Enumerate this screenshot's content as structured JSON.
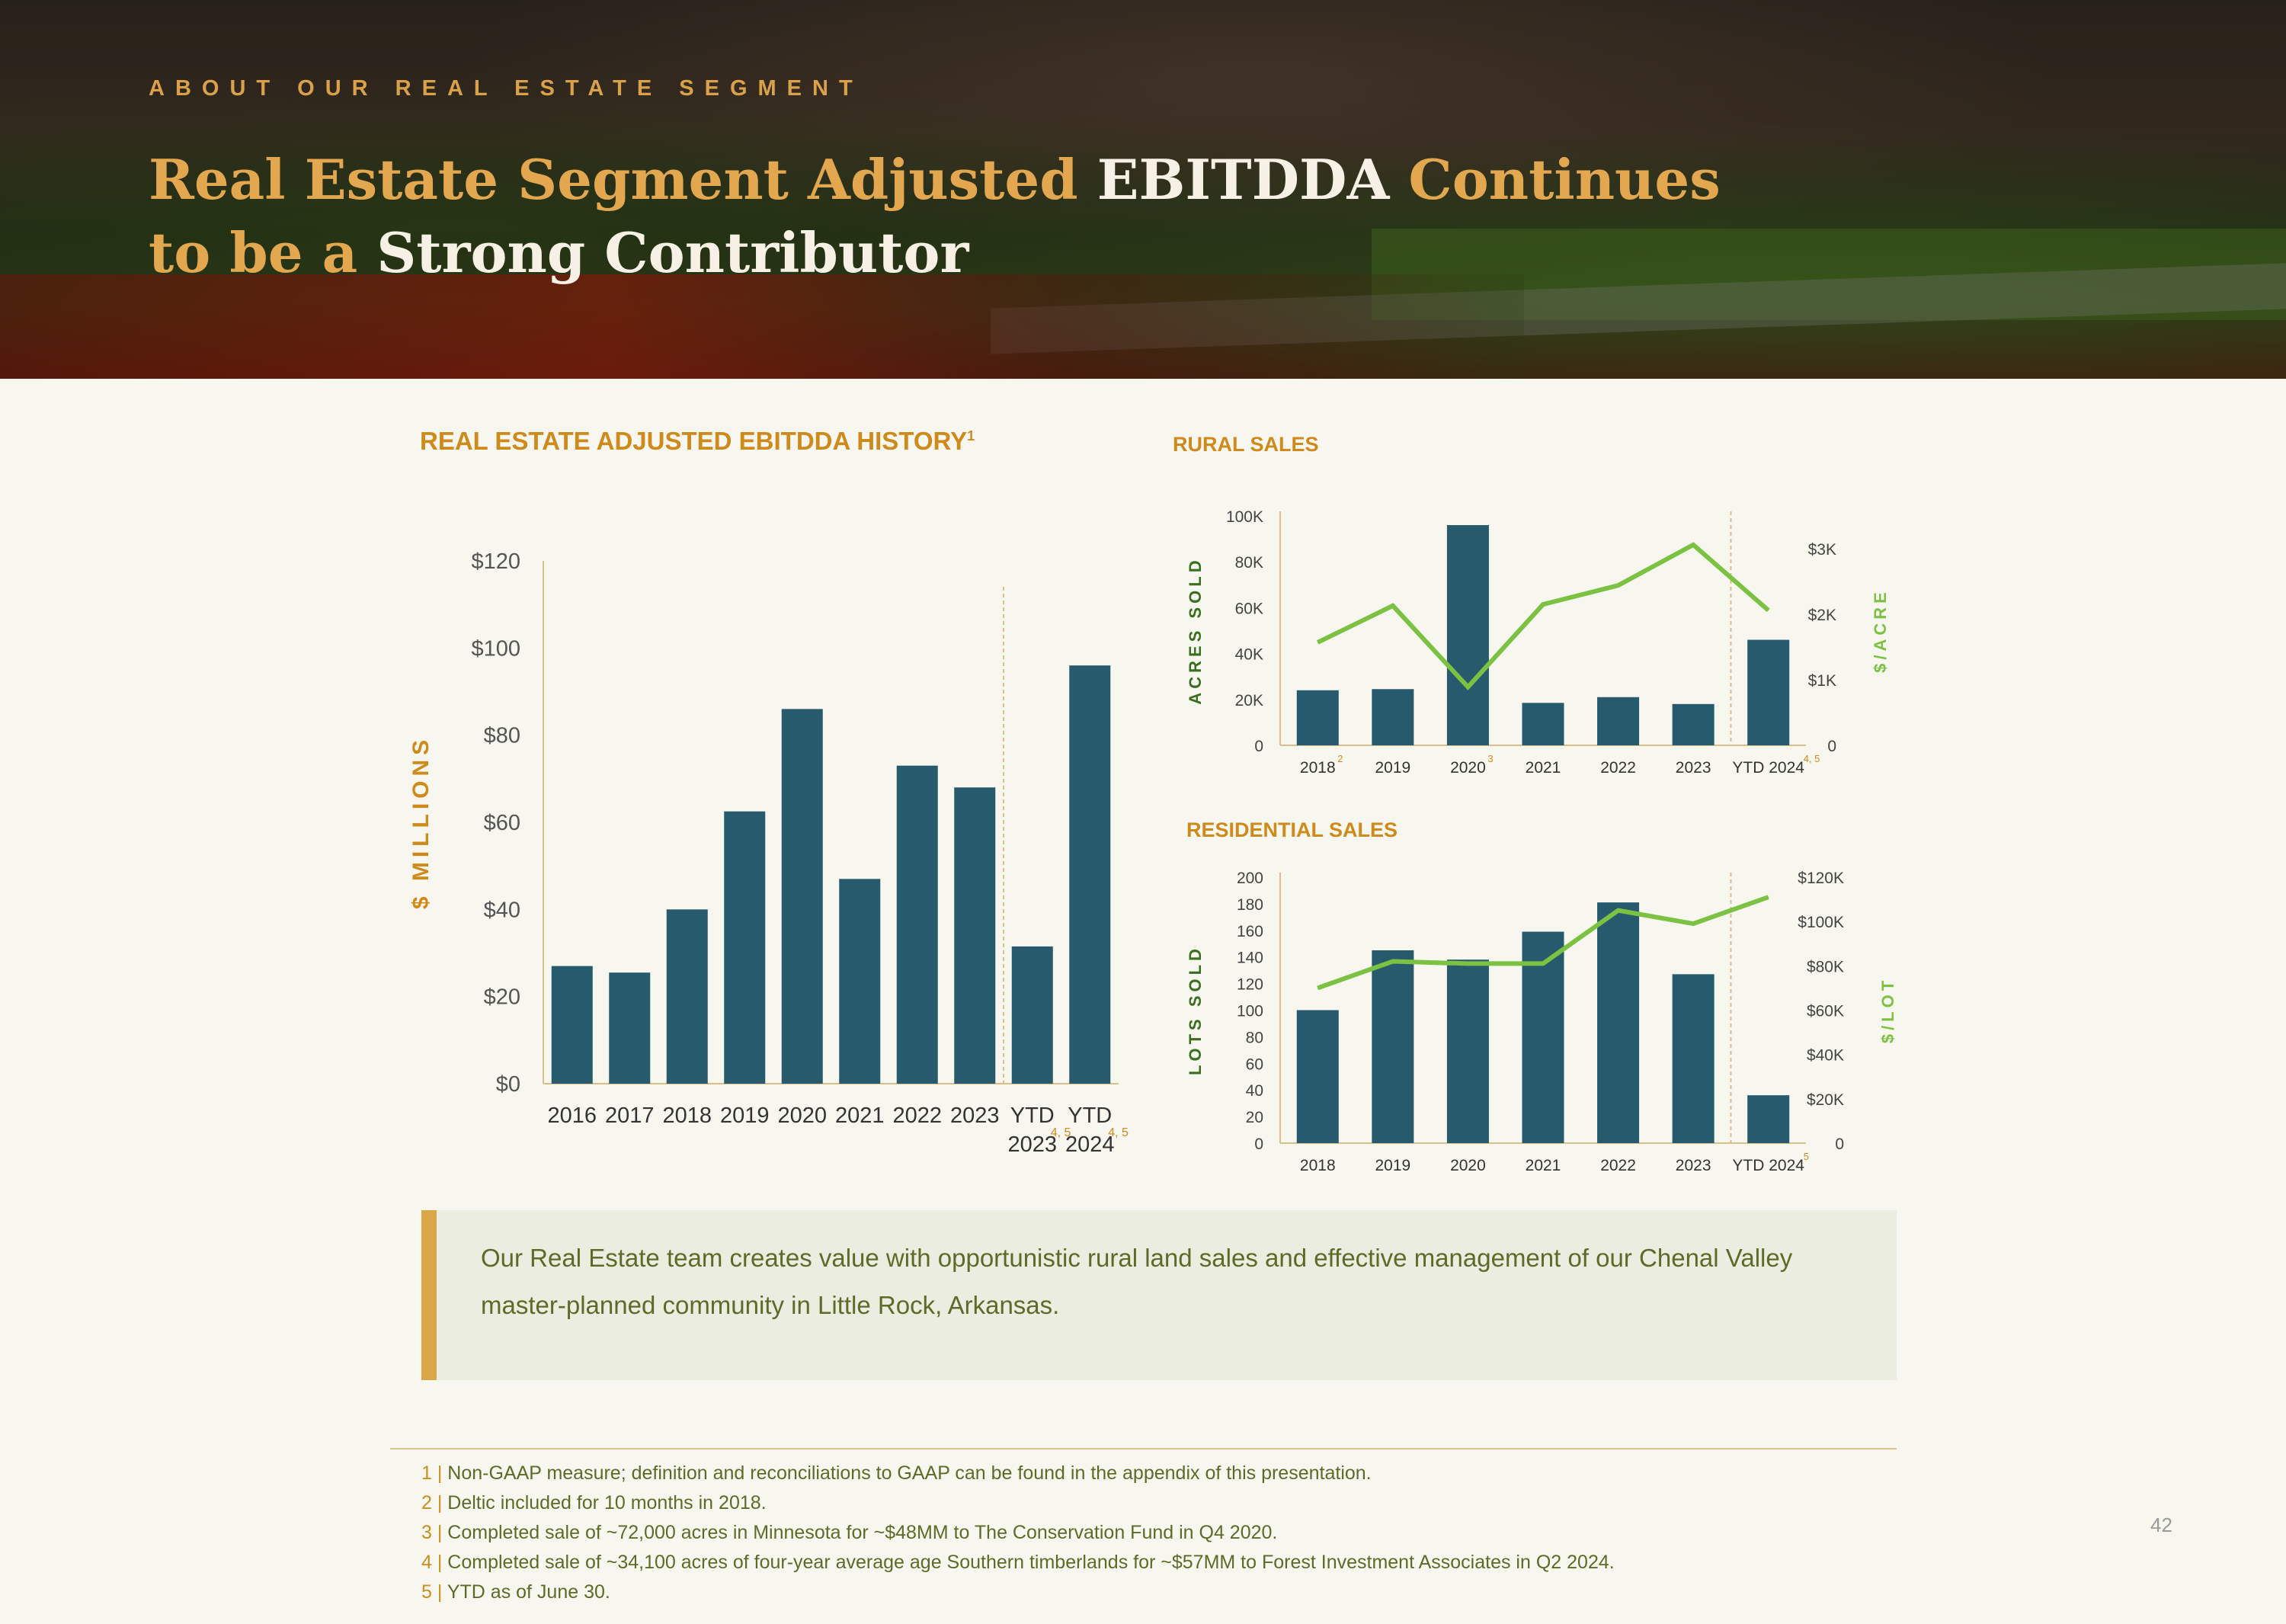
{
  "header": {
    "eyebrow": "ABOUT OUR REAL ESTATE SEGMENT",
    "title_parts": [
      "Real Estate Segment Adjusted ",
      "EBITDDA",
      " Continues",
      "to be a ",
      "Strong Contributor"
    ]
  },
  "sections": {
    "ebitdda_title": "REAL ESTATE ADJUSTED EBITDDA HISTORY",
    "ebitdda_sup": "1",
    "rural_title": "RURAL SALES",
    "residential_title": "RESIDENTIAL SALES"
  },
  "colors": {
    "bar": "#265a6c",
    "line": "#7cc242",
    "accent": "#cf8a1c",
    "text": "#5d6b28"
  },
  "chart_data": [
    {
      "id": "ebitdda",
      "type": "bar",
      "title": "REAL ESTATE ADJUSTED EBITDDA HISTORY",
      "ylabel": "$ MILLIONS",
      "categories": [
        "2016",
        "2017",
        "2018",
        "2019",
        "2020",
        "2021",
        "2022",
        "2023",
        "YTD 2023",
        "YTD 2024"
      ],
      "category_lines": [
        [
          "2016"
        ],
        [
          "2017"
        ],
        [
          "2018"
        ],
        [
          "2019"
        ],
        [
          "2020"
        ],
        [
          "2021"
        ],
        [
          "2022"
        ],
        [
          "2023"
        ],
        [
          "YTD",
          "2023"
        ],
        [
          "YTD",
          "2024"
        ]
      ],
      "superscripts": [
        "",
        "",
        "",
        "",
        "",
        "",
        "",
        "",
        "4, 5",
        "4, 5"
      ],
      "values": [
        27,
        25.5,
        40,
        62.5,
        86,
        47,
        73,
        68,
        31.5,
        96
      ],
      "ylim": [
        0,
        120
      ],
      "yticks": [
        0,
        20,
        40,
        60,
        80,
        100,
        120
      ],
      "ytick_labels": [
        "$0",
        "$20",
        "$40",
        "$60",
        "$80",
        "$100",
        "$120"
      ],
      "ytd_divider_after": 7
    },
    {
      "id": "rural",
      "type": "bar+line",
      "title": "RURAL SALES",
      "ylabel_left": "ACRES SOLD",
      "ylabel_right": "$/ACRE",
      "categories": [
        "2018",
        "2019",
        "2020",
        "2021",
        "2022",
        "2023",
        "YTD 2024"
      ],
      "superscripts": [
        "2",
        "",
        "3",
        "",
        "",
        "",
        "4, 5"
      ],
      "bars": {
        "name": "Acres Sold",
        "values": [
          24000,
          24500,
          96000,
          18500,
          21000,
          18000,
          46000
        ]
      },
      "line": {
        "name": "$/Acre",
        "values": [
          1570,
          2130,
          890,
          2150,
          2440,
          3060,
          2060
        ]
      },
      "ylim_left": [
        0,
        100000
      ],
      "yticks_left": [
        0,
        20000,
        40000,
        60000,
        80000,
        100000
      ],
      "ytick_labels_left": [
        "0",
        "20K",
        "40K",
        "60K",
        "80K",
        "100K"
      ],
      "ylim_right": [
        0,
        3500
      ],
      "yticks_right": [
        0,
        1000,
        2000,
        3000
      ],
      "ytick_labels_right": [
        "0",
        "$1K",
        "$2K",
        "$3K"
      ],
      "ytd_divider_after": 5
    },
    {
      "id": "residential",
      "type": "bar+line",
      "title": "RESIDENTIAL SALES",
      "ylabel_left": "LOTS SOLD",
      "ylabel_right": "$/LOT",
      "categories": [
        "2018",
        "2019",
        "2020",
        "2021",
        "2022",
        "2023",
        "YTD 2024"
      ],
      "superscripts": [
        "",
        "",
        "",
        "",
        "",
        "",
        "5"
      ],
      "bars": {
        "name": "Lots Sold",
        "values": [
          100,
          145,
          138,
          159,
          181,
          127,
          36
        ]
      },
      "line": {
        "name": "$/Lot",
        "values": [
          70000,
          82000,
          81000,
          81000,
          105000,
          99000,
          111000
        ]
      },
      "ylim_left": [
        0,
        200
      ],
      "yticks_left": [
        0,
        20,
        40,
        60,
        80,
        100,
        120,
        140,
        160,
        180,
        200
      ],
      "ytick_labels_left": [
        "0",
        "20",
        "40",
        "60",
        "80",
        "100",
        "120",
        "140",
        "160",
        "180",
        "200"
      ],
      "ylim_right": [
        0,
        120000
      ],
      "yticks_right": [
        0,
        20000,
        40000,
        60000,
        80000,
        100000,
        120000
      ],
      "ytick_labels_right": [
        "0",
        "$20K",
        "$40K",
        "$60K",
        "$80K",
        "$100K",
        "$120K"
      ],
      "ytd_divider_after": 5
    }
  ],
  "callout": "Our Real Estate team creates value with opportunistic rural land sales and effective management of our Chenal Valley master-planned community in Little Rock, Arkansas.",
  "footnotes": [
    {
      "num": "1",
      "text": "Non-GAAP measure; definition and reconciliations to GAAP can be found in the appendix of this presentation."
    },
    {
      "num": "2",
      "text": "Deltic included for 10 months in 2018."
    },
    {
      "num": "3",
      "text": "Completed sale of ~72,000 acres in Minnesota for ~$48MM to The Conservation Fund in Q4 2020."
    },
    {
      "num": "4",
      "text": "Completed sale of ~34,100 acres of four-year average age Southern timberlands for ~$57MM to Forest Investment Associates in Q2 2024."
    },
    {
      "num": "5",
      "text": "YTD as of June 30."
    }
  ],
  "page_number": "42"
}
